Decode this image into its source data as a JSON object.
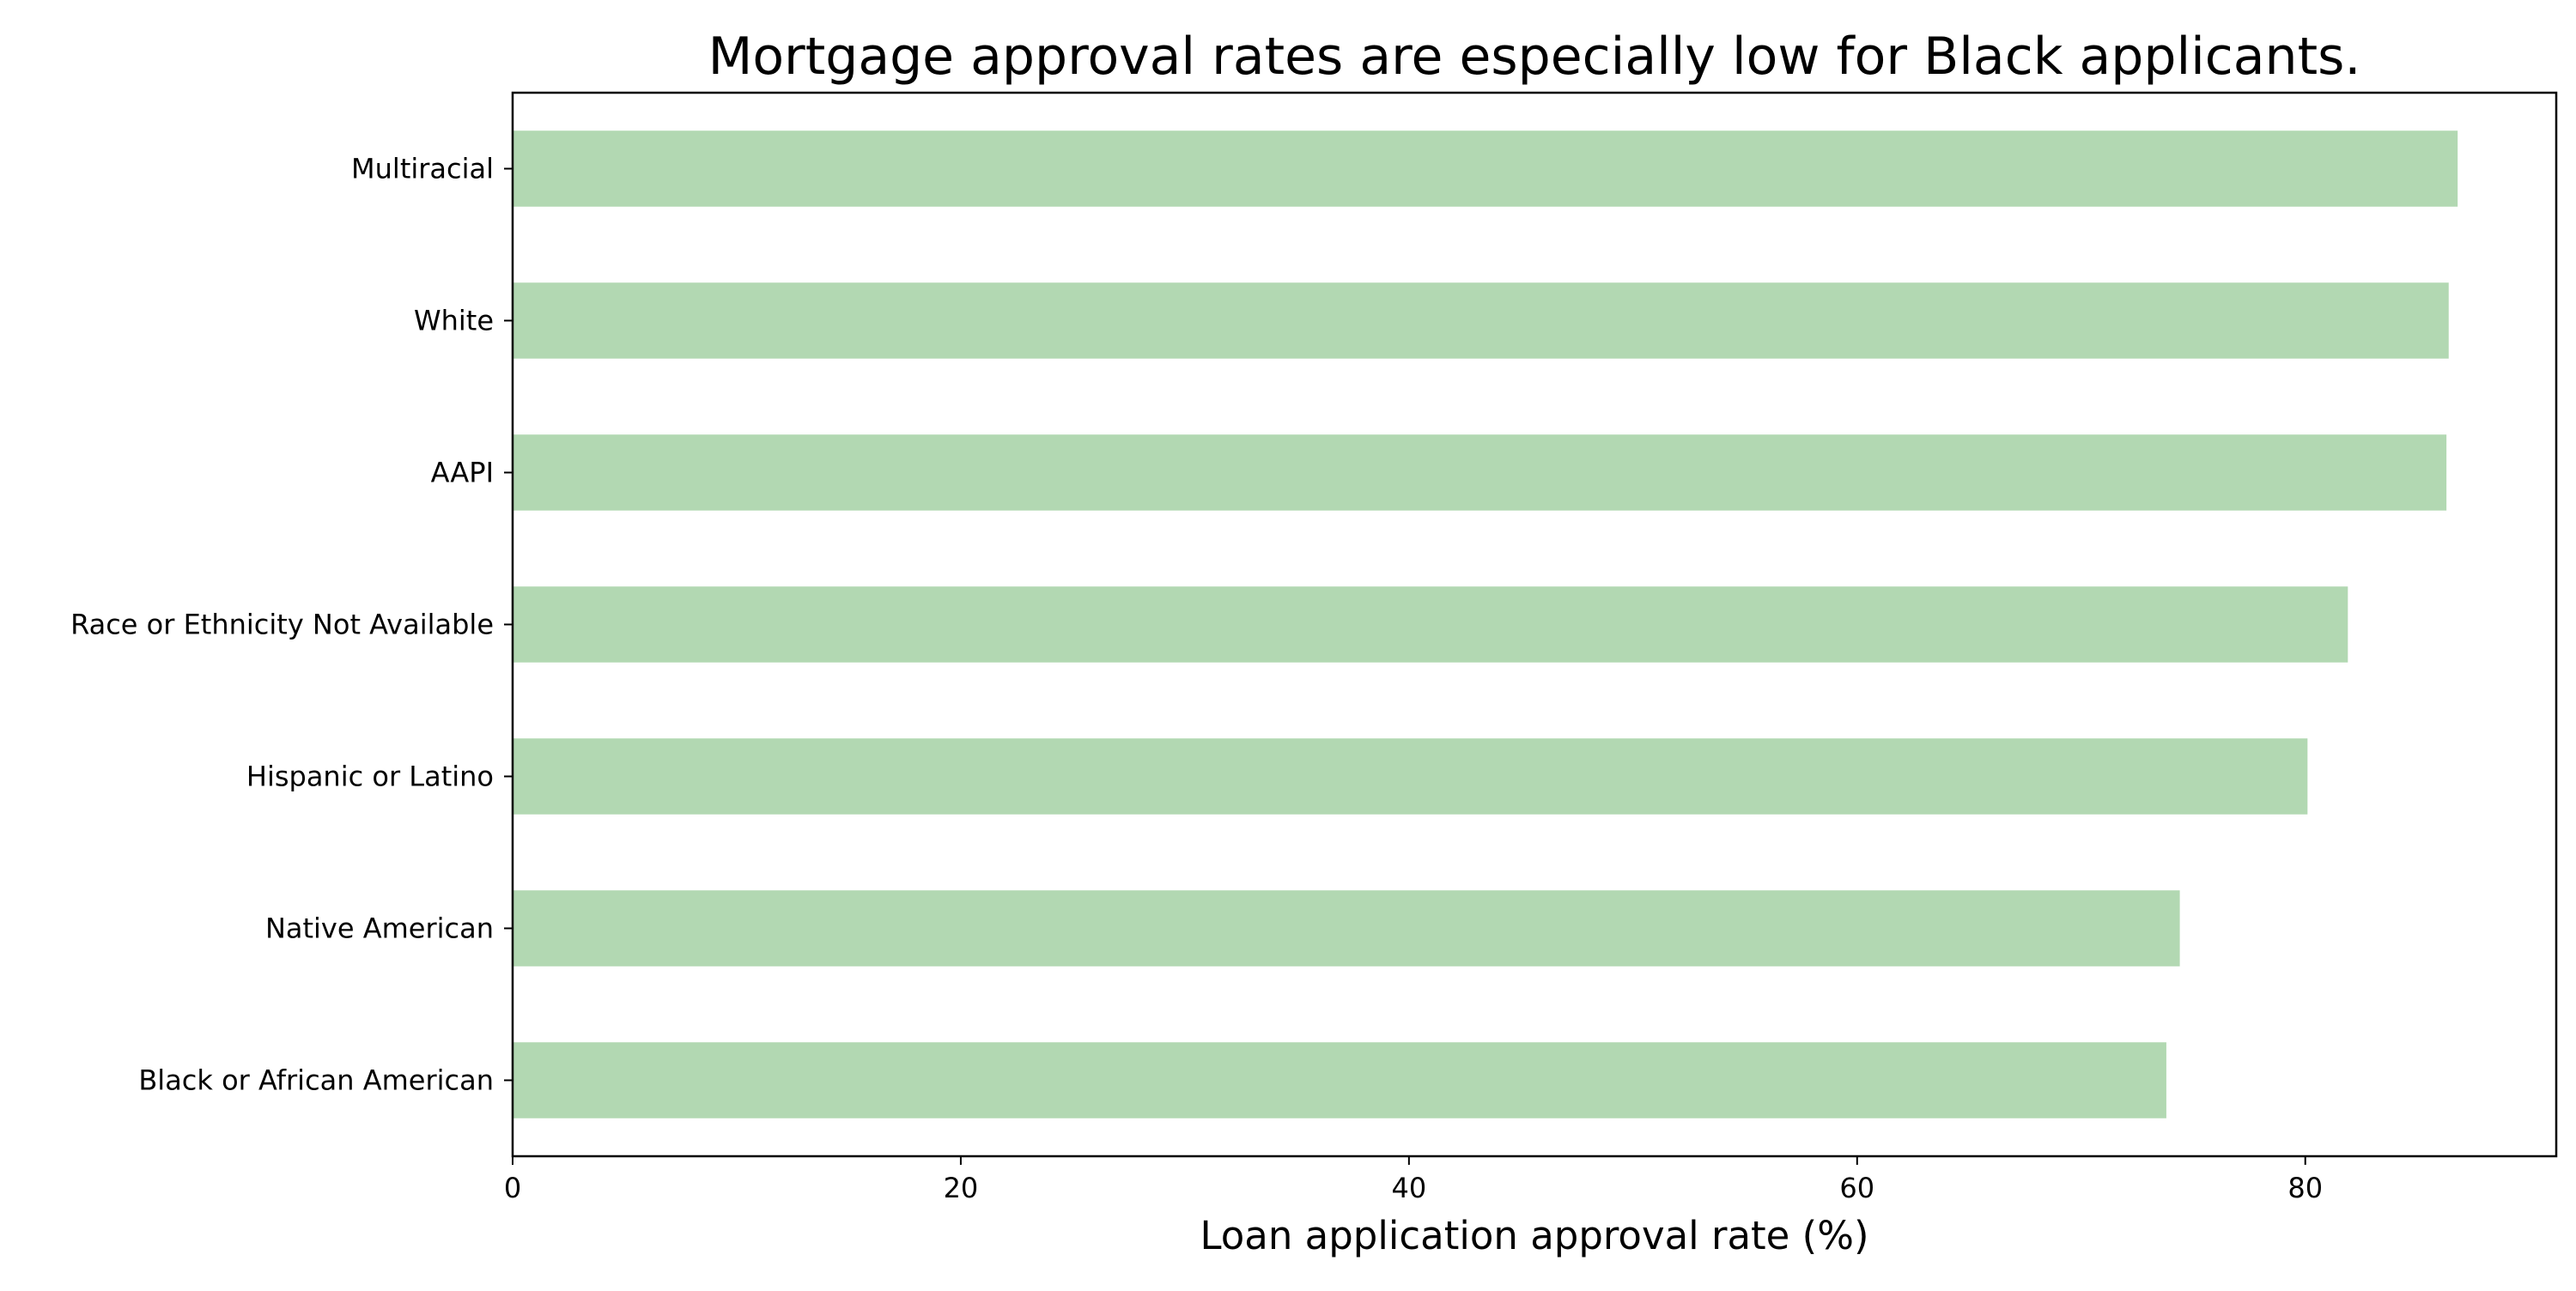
{
  "chart_data": {
    "type": "bar",
    "orientation": "horizontal",
    "title": "Mortgage approval rates are especially low for Black applicants.",
    "xlabel": "Loan application approval rate (%)",
    "ylabel": "",
    "categories": [
      "Black or African American",
      "Native American",
      "Hispanic or Latino",
      "Race or Ethnicity Not Available",
      "AAPI",
      "White",
      "Multiracial"
    ],
    "values": [
      73.8,
      74.4,
      80.1,
      81.9,
      86.3,
      86.4,
      86.8
    ],
    "xlim": [
      0,
      91.2
    ],
    "xticks": [
      0,
      20,
      40,
      60,
      80
    ],
    "xtick_labels": [
      "0",
      "20",
      "40",
      "60",
      "80"
    ],
    "bar_color": "#b2d8b2",
    "grid": false,
    "legend": "none"
  }
}
